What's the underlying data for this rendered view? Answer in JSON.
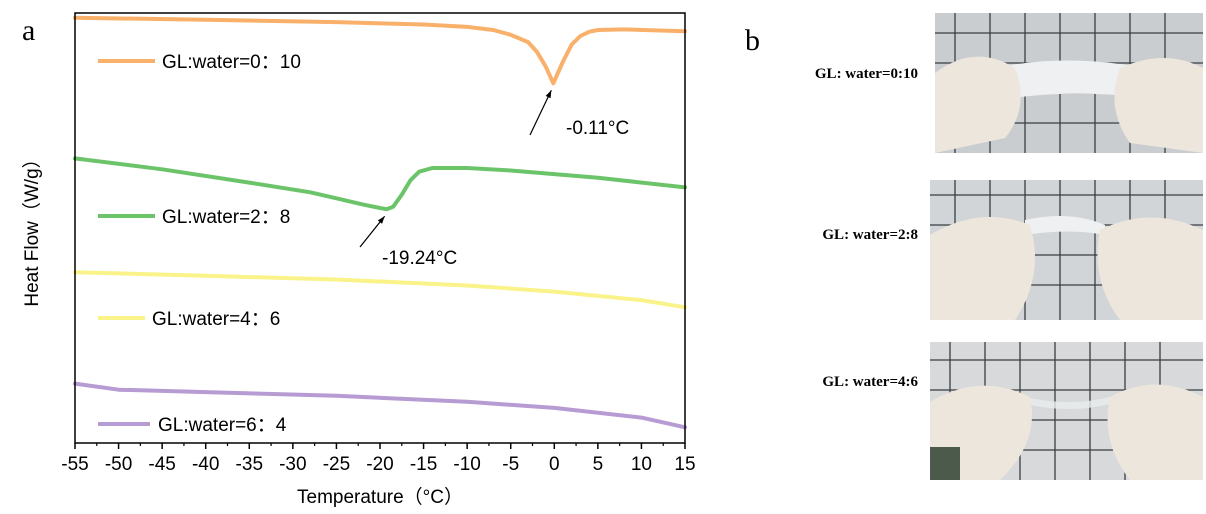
{
  "panel_a_label": "a",
  "panel_b_label": "b",
  "chart_data": {
    "type": "line",
    "xlabel": "Temperature（°C）",
    "ylabel": "Heat Flow（W/g）",
    "xlim": [
      -55,
      15
    ],
    "x_ticks": [
      -55,
      -50,
      -45,
      -40,
      -35,
      -30,
      -25,
      -20,
      -15,
      -10,
      -5,
      0,
      5,
      10,
      15
    ],
    "y_ticks_shown": false,
    "grid": false,
    "legend": "inline labels beside each curve",
    "series": [
      {
        "name": "GL:water=0：10",
        "color": "#f9b06a",
        "x": [
          -55,
          -40,
          -25,
          -15,
          -10,
          -7,
          -5,
          -3,
          -2,
          -1,
          -0.11,
          1,
          2,
          3,
          4,
          5,
          8,
          15
        ],
        "y": [
          0.6,
          0.45,
          0.25,
          0.05,
          -0.15,
          -0.4,
          -0.8,
          -1.4,
          -2.2,
          -3.4,
          -4.8,
          -3.0,
          -1.6,
          -0.9,
          -0.55,
          -0.4,
          -0.35,
          -0.5
        ]
      },
      {
        "name": "GL:water=2：8",
        "color": "#6cc46a",
        "x": [
          -55,
          -45,
          -35,
          -28,
          -25,
          -22,
          -20,
          -19.24,
          -18.5,
          -17.5,
          -16.5,
          -15.5,
          -14,
          -10,
          -5,
          5,
          15
        ],
        "y": [
          -11.0,
          -11.9,
          -13.0,
          -13.8,
          -14.3,
          -14.8,
          -15.1,
          -15.2,
          -15.0,
          -14.0,
          -12.8,
          -12.1,
          -11.8,
          -11.8,
          -12.0,
          -12.6,
          -13.4
        ]
      },
      {
        "name": "GL:water=4：6",
        "color": "#f9f389",
        "x": [
          -55,
          -40,
          -25,
          -10,
          0,
          10,
          15
        ],
        "y": [
          -20.4,
          -20.7,
          -21.0,
          -21.5,
          -22.0,
          -22.7,
          -23.3
        ]
      },
      {
        "name": "GL:water=6：4",
        "color": "#b79bd3",
        "x": [
          -55,
          -50,
          -40,
          -25,
          -10,
          0,
          10,
          15
        ],
        "y": [
          -29.6,
          -30.1,
          -30.3,
          -30.6,
          -31.1,
          -31.6,
          -32.4,
          -33.2
        ]
      }
    ],
    "annotations": [
      {
        "text": "-0.11°C",
        "x": -0.11,
        "series": 0
      },
      {
        "text": "-19.24°C",
        "x": -19.24,
        "series": 1
      }
    ]
  },
  "photos": [
    {
      "label": "GL: water=0:10"
    },
    {
      "label": "GL: water=2:8"
    },
    {
      "label": "GL: water=4:6"
    }
  ]
}
